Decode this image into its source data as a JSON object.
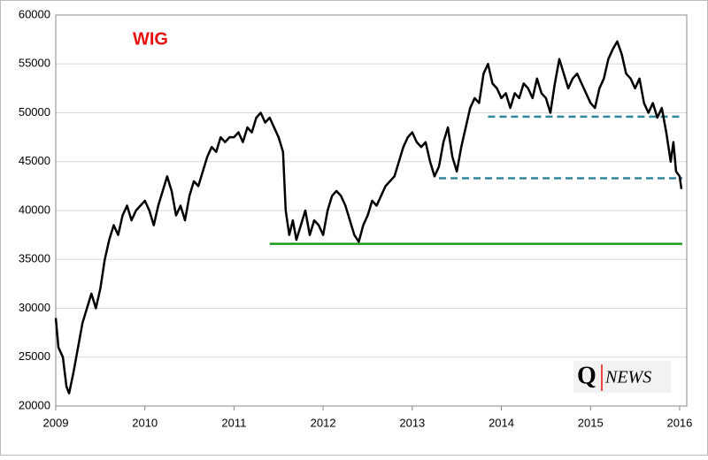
{
  "chart_data": {
    "type": "line",
    "title": "WIG",
    "x": [
      2009.0,
      2009.03,
      2009.08,
      2009.12,
      2009.15,
      2009.2,
      2009.25,
      2009.3,
      2009.35,
      2009.4,
      2009.45,
      2009.5,
      2009.55,
      2009.6,
      2009.65,
      2009.7,
      2009.75,
      2009.8,
      2009.85,
      2009.9,
      2009.95,
      2010.0,
      2010.05,
      2010.1,
      2010.15,
      2010.2,
      2010.25,
      2010.3,
      2010.35,
      2010.4,
      2010.45,
      2010.5,
      2010.55,
      2010.6,
      2010.65,
      2010.7,
      2010.75,
      2010.8,
      2010.85,
      2010.9,
      2010.95,
      2011.0,
      2011.05,
      2011.1,
      2011.15,
      2011.2,
      2011.25,
      2011.3,
      2011.35,
      2011.4,
      2011.45,
      2011.5,
      2011.55,
      2011.58,
      2011.62,
      2011.66,
      2011.7,
      2011.75,
      2011.8,
      2011.85,
      2011.9,
      2011.95,
      2012.0,
      2012.05,
      2012.1,
      2012.15,
      2012.2,
      2012.25,
      2012.3,
      2012.35,
      2012.4,
      2012.45,
      2012.5,
      2012.55,
      2012.6,
      2012.65,
      2012.7,
      2012.75,
      2012.8,
      2012.85,
      2012.9,
      2012.95,
      2013.0,
      2013.05,
      2013.1,
      2013.15,
      2013.2,
      2013.25,
      2013.3,
      2013.35,
      2013.4,
      2013.45,
      2013.5,
      2013.55,
      2013.6,
      2013.65,
      2013.7,
      2013.75,
      2013.8,
      2013.85,
      2013.9,
      2013.95,
      2014.0,
      2014.05,
      2014.1,
      2014.15,
      2014.2,
      2014.25,
      2014.3,
      2014.35,
      2014.4,
      2014.45,
      2014.5,
      2014.55,
      2014.6,
      2014.65,
      2014.7,
      2014.75,
      2014.8,
      2014.85,
      2014.9,
      2014.95,
      2015.0,
      2015.05,
      2015.1,
      2015.15,
      2015.2,
      2015.25,
      2015.3,
      2015.35,
      2015.4,
      2015.45,
      2015.5,
      2015.55,
      2015.6,
      2015.65,
      2015.7,
      2015.75,
      2015.8,
      2015.85,
      2015.9,
      2015.93,
      2015.96,
      2016.0,
      2016.02
    ],
    "series": [
      {
        "name": "WIG",
        "color": "#000000",
        "values": [
          29000,
          26000,
          25000,
          22000,
          21300,
          23500,
          26000,
          28500,
          30000,
          31500,
          30000,
          32000,
          35000,
          37000,
          38500,
          37500,
          39500,
          40500,
          39000,
          40000,
          40500,
          41000,
          40000,
          38500,
          40500,
          42000,
          43500,
          42000,
          39500,
          40500,
          39000,
          41500,
          43000,
          42500,
          44000,
          45500,
          46500,
          46000,
          47500,
          47000,
          47500,
          47500,
          48000,
          47000,
          48500,
          48000,
          49500,
          50000,
          49000,
          49500,
          48500,
          47500,
          46000,
          40000,
          37500,
          39000,
          37000,
          38500,
          40000,
          37500,
          39000,
          38500,
          37500,
          40000,
          41500,
          42000,
          41500,
          40500,
          39000,
          37500,
          36800,
          38500,
          39500,
          41000,
          40500,
          41500,
          42500,
          43000,
          43500,
          45000,
          46500,
          47500,
          48000,
          47000,
          46500,
          47000,
          45000,
          43500,
          44500,
          47000,
          48500,
          45500,
          44000,
          46500,
          48500,
          50500,
          51500,
          51000,
          54000,
          55000,
          53000,
          52500,
          51500,
          52000,
          50500,
          52000,
          51500,
          53000,
          52500,
          51500,
          53500,
          52000,
          51500,
          50000,
          53000,
          55500,
          54000,
          52500,
          53500,
          54000,
          53000,
          52000,
          51000,
          50500,
          52500,
          53500,
          55500,
          56500,
          57300,
          56000,
          54000,
          53500,
          52500,
          53500,
          51000,
          50000,
          51000,
          49500,
          50500,
          48000,
          45000,
          47000,
          44000,
          43500,
          42200
        ]
      }
    ],
    "levels": [
      {
        "y": 36600,
        "x": [
          2011.4,
          2016.03
        ],
        "color": "#1a9c1a",
        "dashed": false
      },
      {
        "y": 49600,
        "x": [
          2013.85,
          2016.03
        ],
        "color": "#31859c",
        "dashed": true
      },
      {
        "y": 43300,
        "x": [
          2013.3,
          2016.03
        ],
        "color": "#31859c",
        "dashed": true
      }
    ],
    "xlim": [
      2009,
      2016.08
    ],
    "xticks": [
      2009,
      2010,
      2011,
      2012,
      2013,
      2014,
      2015,
      2016
    ],
    "ylim": [
      20000,
      60000
    ],
    "yticks": [
      20000,
      25000,
      30000,
      35000,
      40000,
      45000,
      50000,
      55000,
      60000
    ],
    "grid": true,
    "logo": {
      "q": "Q",
      "news": "NEWS"
    }
  }
}
